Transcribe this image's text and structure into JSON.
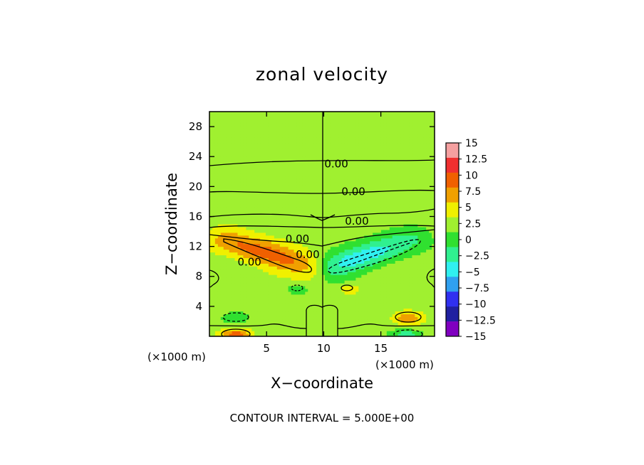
{
  "chart_data": {
    "type": "heatmap",
    "title": "zonal velocity",
    "xlabel": "X−coordinate",
    "ylabel": "Z−coordinate",
    "xlim": [
      0,
      19.7
    ],
    "ylim": [
      0,
      30
    ],
    "x_ticks": [
      "5",
      "10",
      "15"
    ],
    "x_tick_values": [
      5,
      10,
      15
    ],
    "y_ticks": [
      "4",
      "8",
      "12",
      "16",
      "20",
      "24",
      "28"
    ],
    "y_tick_values": [
      4,
      8,
      12,
      16,
      20,
      24,
      28
    ],
    "x_unit_left": "(×1000 m)",
    "x_unit_right": "(×1000 m)",
    "footer": "CONTOUR INTERVAL = 5.000E+00",
    "colorbar": {
      "labels": [
        "15",
        "12.5",
        "10",
        "7.5",
        "5",
        "2.5",
        "0",
        "−2.5",
        "−5",
        "−7.5",
        "−10",
        "−12.5",
        "−15"
      ],
      "values": [
        15,
        12.5,
        10,
        7.5,
        5,
        2.5,
        0,
        -2.5,
        -5,
        -7.5,
        -10,
        -12.5,
        -15
      ],
      "colors": [
        "#f5a0a0",
        "#f03030",
        "#f06000",
        "#f0a000",
        "#f0f000",
        "#a0f030",
        "#30e030",
        "#30f090",
        "#30f0f0",
        "#30a0f0",
        "#3030f0",
        "#2020a0",
        "#8000c0"
      ]
    },
    "contour_labels": [
      {
        "text": "0.00",
        "x": 11.1,
        "z": 23.0
      },
      {
        "text": "0.00",
        "x": 12.6,
        "z": 19.3
      },
      {
        "text": "0.00",
        "x": 12.9,
        "z": 15.4
      },
      {
        "text": "0.00",
        "x": 7.7,
        "z": 13.0
      },
      {
        "text": "0.00",
        "x": 8.6,
        "z": 10.9
      },
      {
        "text": "0.00",
        "x": 3.5,
        "z": 9.9
      }
    ],
    "features": [
      {
        "name": "positive-jet-left",
        "peak": 7.5,
        "x0": 1.5,
        "z0": 12.8,
        "x1": 8.8,
        "z1": 9.4,
        "width": 1.1
      },
      {
        "name": "negative-jet-right",
        "peak": -7.5,
        "x0": 11.0,
        "z0": 9.4,
        "x1": 17.8,
        "z1": 13.0,
        "width": 1.1
      },
      {
        "name": "positive-blob-bottom-right",
        "peak": 6,
        "x": 17.3,
        "z": 2.5,
        "rx": 1.3,
        "rz": 0.9
      },
      {
        "name": "negative-blob-bottom-left",
        "peak": -4,
        "x": 2.3,
        "z": 2.5,
        "rx": 1.2,
        "rz": 0.8
      },
      {
        "name": "positive-blob-bottom-left",
        "peak": 7,
        "x": 2.3,
        "z": 0.3,
        "rx": 1.3,
        "rz": 0.7
      },
      {
        "name": "negative-blob-bottom-right",
        "peak": -5,
        "x": 17.3,
        "z": 0.3,
        "rx": 1.3,
        "rz": 0.6
      },
      {
        "name": "negative-blob-mid",
        "peak": -3.5,
        "x": 7.7,
        "z": 6.3,
        "rx": 0.9,
        "rz": 0.7
      },
      {
        "name": "positive-blob-mid",
        "peak": 3.5,
        "x": 12.2,
        "z": 6.3,
        "rx": 0.9,
        "rz": 0.7
      }
    ]
  }
}
